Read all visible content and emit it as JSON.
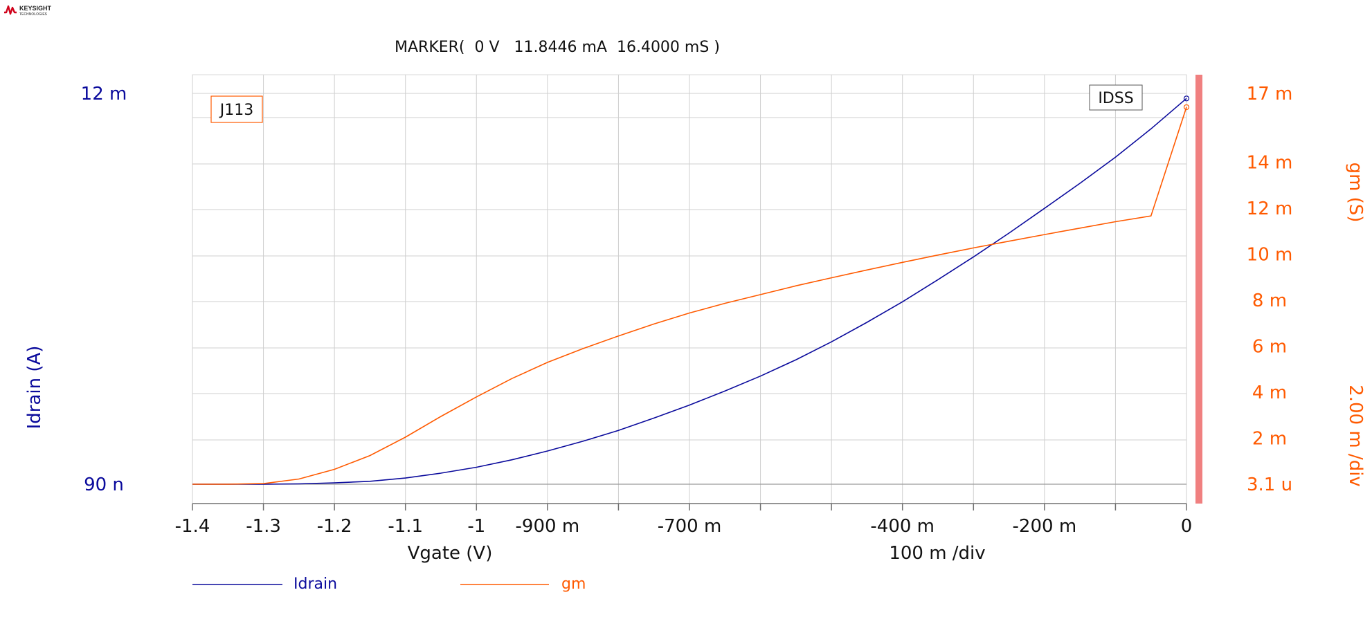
{
  "logo": {
    "name": "KEYSIGHT",
    "sub": "TECHNOLOGIES",
    "icon": "keysight-wave-icon"
  },
  "marker": {
    "text": "MARKER(  0 V   11.8446 mA  16.4000 mS )"
  },
  "annotations": {
    "device_label": "J113",
    "idss_label": "IDSS"
  },
  "colors": {
    "idrain": "#0a0a9c",
    "gm": "#ff5a00",
    "grid": "#cfcfcf",
    "axis": "#707070",
    "right_bar": "#f08080"
  },
  "chart_data": {
    "type": "line",
    "x": [
      -1.4,
      -1.35,
      -1.3,
      -1.25,
      -1.2,
      -1.15,
      -1.1,
      -1.05,
      -1.0,
      -0.95,
      -0.9,
      -0.85,
      -0.8,
      -0.75,
      -0.7,
      -0.65,
      -0.6,
      -0.55,
      -0.5,
      -0.45,
      -0.4,
      -0.35,
      -0.3,
      -0.25,
      -0.2,
      -0.15,
      -0.1,
      -0.05,
      0.0
    ],
    "series": [
      {
        "name": "Idrain",
        "axis": "left",
        "color": "#0a0a9c",
        "values": [
          9e-08,
          9e-08,
          1e-07,
          1e-05,
          4e-05,
          9e-05,
          0.00019,
          0.00034,
          0.00052,
          0.00075,
          0.00102,
          0.00132,
          0.00165,
          0.00203,
          0.00243,
          0.00286,
          0.00332,
          0.00382,
          0.00437,
          0.00497,
          0.0056,
          0.00628,
          0.00698,
          0.00771,
          0.00847,
          0.00924,
          0.01004,
          0.01091,
          0.0118446
        ]
      },
      {
        "name": "gm",
        "axis": "right",
        "color": "#ff5a00",
        "values": [
          3.1e-06,
          3.1e-06,
          3e-05,
          0.00023,
          0.00065,
          0.00125,
          0.00205,
          0.00295,
          0.0038,
          0.0046,
          0.0053,
          0.0059,
          0.00645,
          0.00697,
          0.00745,
          0.00787,
          0.00825,
          0.00863,
          0.00898,
          0.00932,
          0.00965,
          0.00997,
          0.01028,
          0.01057,
          0.01086,
          0.01114,
          0.01142,
          0.01167,
          0.0164
        ]
      }
    ],
    "xlabel": "Vgate (V)",
    "x_div_label": "100 m /div",
    "ylabel_left": "Idrain (A)",
    "ylabel_right": "gm (S)",
    "y_right_div_label": "2.00 m /div",
    "xlim": [
      -1.4,
      0.0
    ],
    "ylim_left": [
      9e-08,
      0.012
    ],
    "ylim_right": [
      3.1e-06,
      0.017
    ],
    "x_ticks": [
      -1.4,
      -1.3,
      -1.2,
      -1.1,
      -1.0,
      -0.9,
      -0.7,
      -0.4,
      -0.2,
      0.0
    ],
    "x_tick_labels": [
      "-1.4",
      "-1.3",
      "-1.2",
      "-1.1",
      "-1",
      "-900 m",
      "-700 m",
      "-400 m",
      "-200 m",
      "0"
    ],
    "y_left_ticks": [
      0.012,
      9e-08
    ],
    "y_left_tick_labels": [
      "12 m",
      "90 n"
    ],
    "y_right_ticks": [
      0.017,
      0.014,
      0.012,
      0.01,
      0.008,
      0.006,
      0.004,
      0.002,
      3.1e-06
    ],
    "y_right_tick_labels": [
      "17 m",
      "14 m",
      "12 m",
      "10 m",
      "8 m",
      "6 m",
      "4 m",
      "2 m",
      "3.1 u"
    ],
    "grid": true,
    "legend": "bottom"
  }
}
